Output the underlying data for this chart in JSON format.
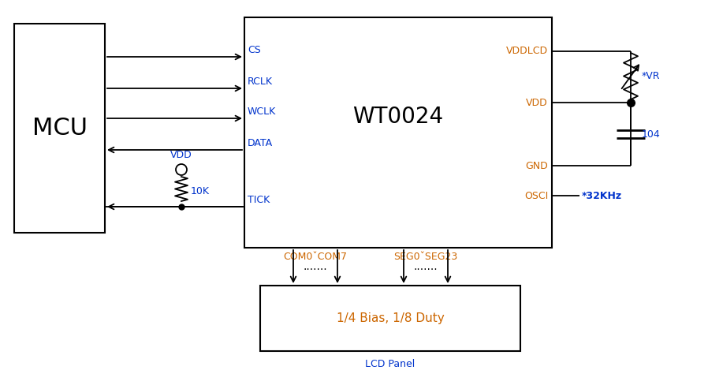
{
  "bg_color": "#ffffff",
  "lc": "#000000",
  "blue": "#0033cc",
  "orange": "#cc6600",
  "mcu_label": "MCU",
  "wt_label": "WT0024",
  "lcd_inner": "1/4 Bias, 1/8 Duty",
  "lcd_label": "LCD Panel",
  "pin_labels": [
    "CS",
    "RCLK",
    "WCLK",
    "DATA",
    "TICK"
  ],
  "right_labels": [
    "VDDLCD",
    "VDD",
    "GND",
    "OSCI"
  ],
  "com_label": "COM0ˇCOM7",
  "seg_label": "SEG0ˇSEG23",
  "vdd_label": "VDD",
  "res_label": "10K",
  "vr_label": "*VR",
  "cap_label": "104",
  "osci_val": "*32KHz"
}
